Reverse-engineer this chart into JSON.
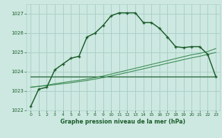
{
  "title": "Graphe pression niveau de la mer (hPa)",
  "bg_color": "#cce8e0",
  "grid_color": "#aacfc8",
  "line_color_main": "#1a5c2a",
  "line_color_ref": "#3a8a52",
  "xlabel_color": "#1a5c2a",
  "xlim": [
    -0.5,
    23.5
  ],
  "ylim": [
    1022,
    1027.5
  ],
  "yticks": [
    1022,
    1023,
    1024,
    1025,
    1026,
    1027
  ],
  "xticks": [
    0,
    1,
    2,
    3,
    4,
    5,
    6,
    7,
    8,
    9,
    10,
    11,
    12,
    13,
    14,
    15,
    16,
    17,
    18,
    19,
    20,
    21,
    22,
    23
  ],
  "main_line": [
    1022.2,
    1023.1,
    1023.2,
    1024.1,
    1024.4,
    1024.7,
    1024.8,
    1025.8,
    1026.0,
    1026.4,
    1026.9,
    1027.05,
    1027.05,
    1027.05,
    1026.55,
    1026.55,
    1026.25,
    1025.8,
    1025.3,
    1025.25,
    1025.3,
    1025.3,
    1024.9,
    1023.75
  ],
  "ref_line_flat": [
    1023.75,
    1023.75,
    1023.75,
    1023.75,
    1023.75,
    1023.75,
    1023.75,
    1023.75,
    1023.75,
    1023.75,
    1023.75,
    1023.75,
    1023.75,
    1023.75,
    1023.75,
    1023.75,
    1023.75,
    1023.75,
    1023.75,
    1023.75,
    1023.75,
    1023.75,
    1023.75,
    1023.75
  ],
  "ref_line_rise1": [
    1023.2,
    1023.25,
    1023.3,
    1023.38,
    1023.44,
    1023.5,
    1023.56,
    1023.62,
    1023.7,
    1023.78,
    1023.88,
    1023.98,
    1024.08,
    1024.18,
    1024.28,
    1024.38,
    1024.48,
    1024.58,
    1024.68,
    1024.78,
    1024.88,
    1024.95,
    1025.05,
    1025.2
  ],
  "ref_line_rise2": [
    1023.2,
    1023.24,
    1023.28,
    1023.33,
    1023.38,
    1023.43,
    1023.49,
    1023.55,
    1023.62,
    1023.7,
    1023.78,
    1023.87,
    1023.96,
    1024.06,
    1024.15,
    1024.25,
    1024.34,
    1024.44,
    1024.53,
    1024.63,
    1024.72,
    1024.8,
    1024.9,
    1025.0
  ]
}
